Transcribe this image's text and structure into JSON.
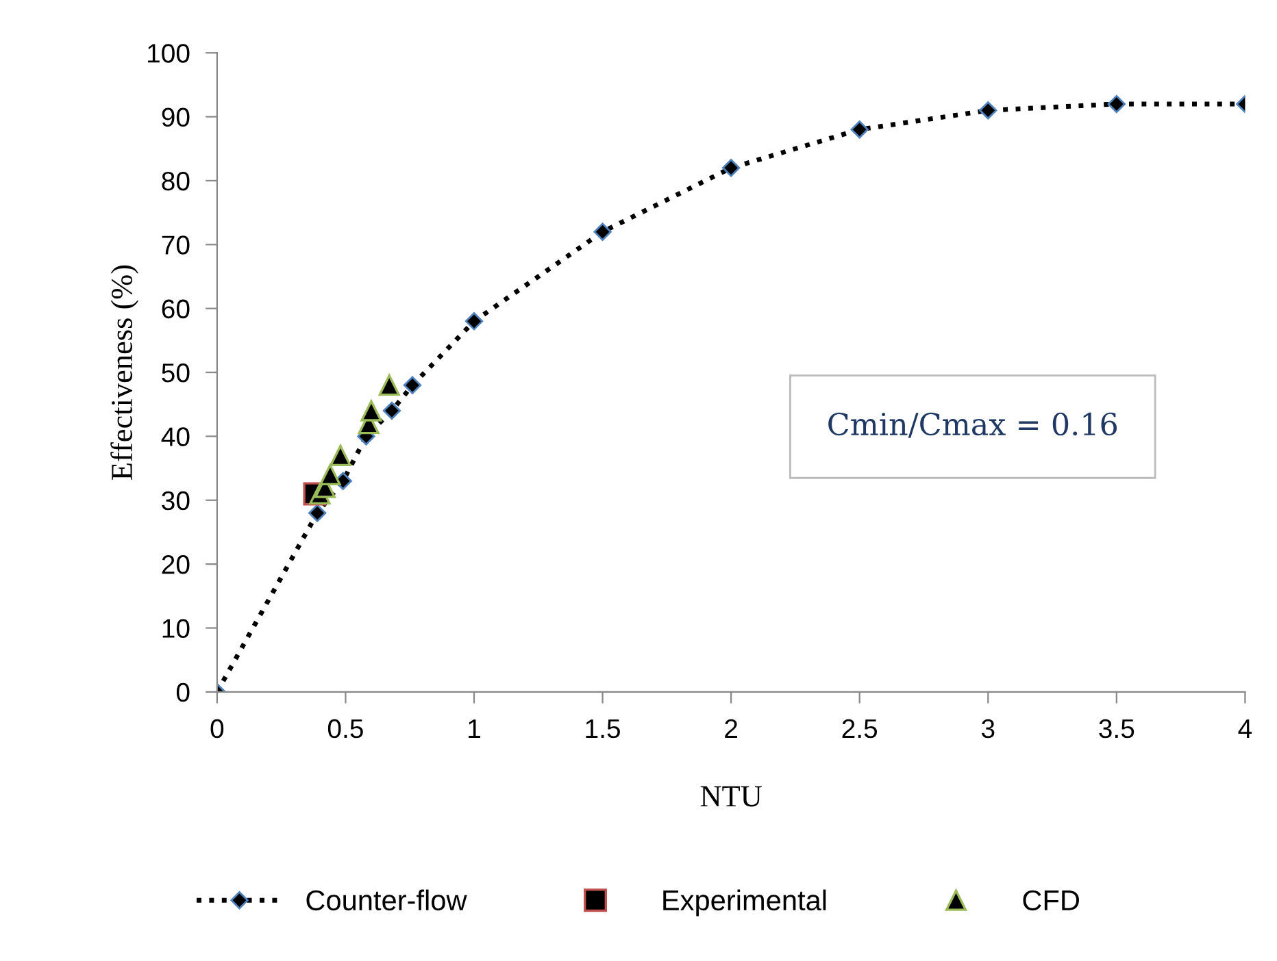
{
  "chart_data": {
    "type": "line",
    "xlabel": "NTU",
    "ylabel": "Effectiveness (%)",
    "xlim": [
      0,
      4
    ],
    "xticks": [
      0,
      0.5,
      1,
      1.5,
      2,
      2.5,
      3,
      3.5,
      4
    ],
    "ylim": [
      0,
      100
    ],
    "yticks": [
      0,
      10,
      20,
      30,
      40,
      50,
      60,
      70,
      80,
      90,
      100
    ],
    "grid": false,
    "legend": "bottom",
    "annotations": [
      "Cmin/Cmax = 0.16"
    ],
    "series": [
      {
        "name": "Counter-flow",
        "color": "#000000",
        "marker": "diamond",
        "line_style": "dotted",
        "x": [
          0,
          0.39,
          0.49,
          0.58,
          0.68,
          0.76,
          1,
          1.5,
          2,
          2.5,
          3,
          3.5,
          4
        ],
        "values": [
          0,
          28,
          33,
          40,
          44,
          48,
          58,
          72,
          82,
          88,
          91,
          92,
          92
        ]
      },
      {
        "name": "Experimental",
        "type": "scatter",
        "color": "#000000",
        "marker": "square",
        "x": [
          0.38
        ],
        "values": [
          31
        ]
      },
      {
        "name": "CFD",
        "type": "scatter",
        "color": "#000000",
        "marker": "triangle",
        "x": [
          0.4,
          0.42,
          0.44,
          0.48,
          0.59,
          0.6,
          0.67
        ],
        "values": [
          31,
          32,
          34,
          37,
          42,
          44,
          48
        ]
      }
    ]
  }
}
